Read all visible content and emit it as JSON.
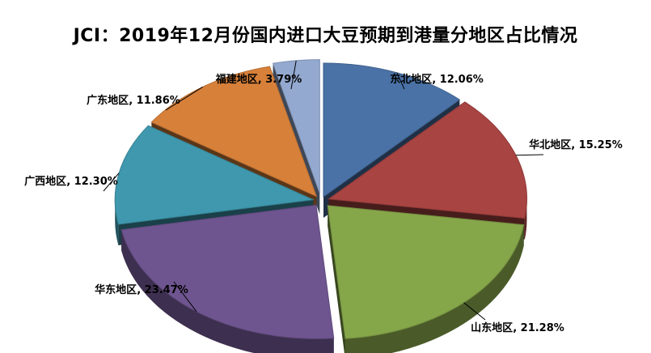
{
  "chart_data": {
    "type": "pie",
    "title": "JCI：2019年12月份国内进口大豆预期到港量分地区占比情况",
    "unit": "%",
    "slices": [
      {
        "label": "东北地区",
        "value": 12.06,
        "value_text": "12.06%",
        "color": "#4a72a6"
      },
      {
        "label": "华北地区",
        "value": 15.25,
        "value_text": "15.25%",
        "color": "#a84442"
      },
      {
        "label": "山东地区",
        "value": 21.28,
        "value_text": "21.28%",
        "color": "#86a64a"
      },
      {
        "label": "华东地区",
        "value": 23.47,
        "value_text": "23.47%",
        "color": "#6e558f"
      },
      {
        "label": "广西地区",
        "value": 12.3,
        "value_text": "12.30%",
        "color": "#3f98ad"
      },
      {
        "label": "广东地区",
        "value": 11.86,
        "value_text": "11.86%",
        "color": "#d7803a"
      },
      {
        "label": "福建地区",
        "value": 3.79,
        "value_text": "3.79%",
        "color": "#93a9d0"
      }
    ],
    "style": "3d-exploded",
    "legend": "none",
    "data_labels": "outside"
  }
}
